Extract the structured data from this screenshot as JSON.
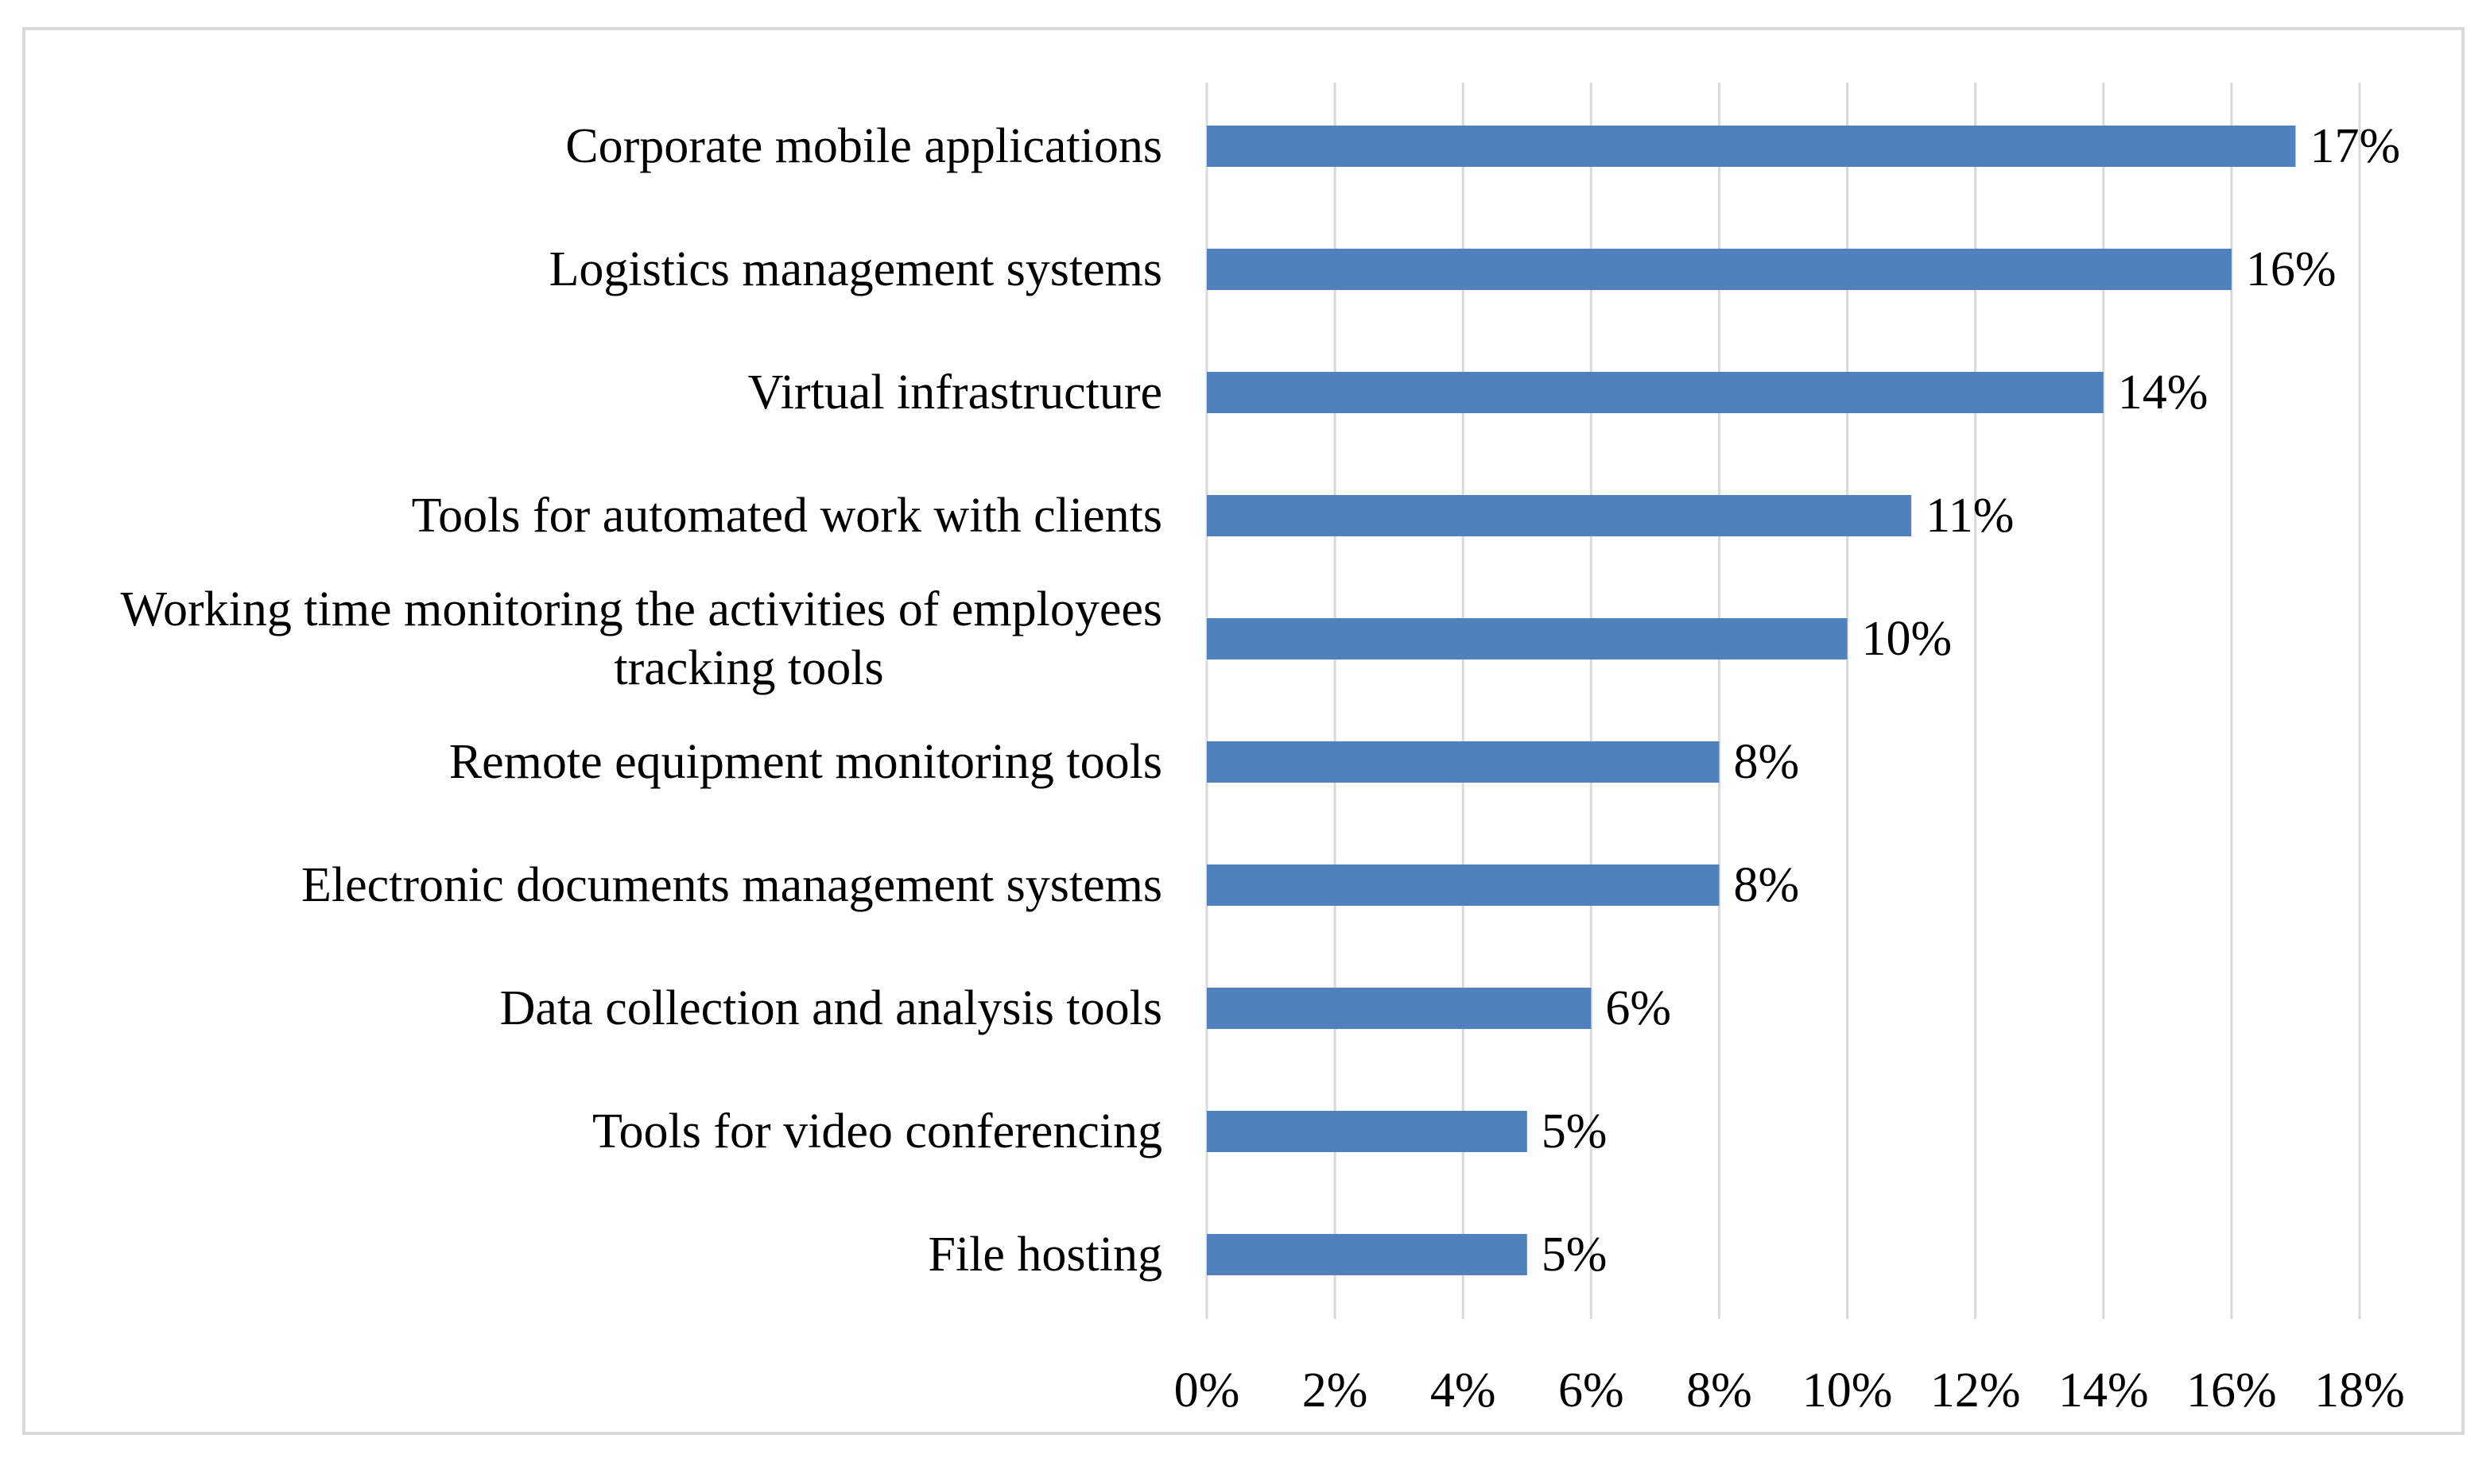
{
  "chart_data": {
    "type": "bar",
    "orientation": "horizontal",
    "title": "",
    "xlabel": "",
    "ylabel": "",
    "xlim": [
      0,
      18
    ],
    "grid": true,
    "bar_color": "#4f81bd",
    "gridline_color": "#d9d9d9",
    "border_color": "#d9d9d9",
    "categories": [
      "Corporate mobile applications",
      "Logistics management systems",
      "Virtual infrastructure",
      "Tools for automated work with clients",
      "Working time monitoring the activities of employees tracking tools",
      "Remote equipment monitoring tools",
      "Electronic documents management systems",
      "Data collection and analysis tools",
      "Tools for video conferencing",
      "File hosting"
    ],
    "category_label_lines": [
      [
        "Corporate mobile applications"
      ],
      [
        "Logistics management systems"
      ],
      [
        "Virtual infrastructure"
      ],
      [
        "Tools for automated work with clients"
      ],
      [
        "Working time monitoring the activities of employees",
        "tracking tools"
      ],
      [
        "Remote equipment monitoring tools"
      ],
      [
        "Electronic documents management systems"
      ],
      [
        "Data collection and analysis tools"
      ],
      [
        "Tools for video conferencing"
      ],
      [
        "File hosting"
      ]
    ],
    "values": [
      17,
      16,
      14,
      11,
      10,
      8,
      8,
      6,
      5,
      5
    ],
    "value_labels": [
      "17%",
      "16%",
      "14%",
      "11%",
      "10%",
      "8%",
      "8%",
      "6%",
      "5%",
      "5%"
    ],
    "x_ticks": [
      0,
      2,
      4,
      6,
      8,
      10,
      12,
      14,
      16,
      18
    ],
    "x_tick_labels": [
      "0%",
      "2%",
      "4%",
      "6%",
      "8%",
      "10%",
      "12%",
      "14%",
      "16%",
      "18%"
    ]
  }
}
